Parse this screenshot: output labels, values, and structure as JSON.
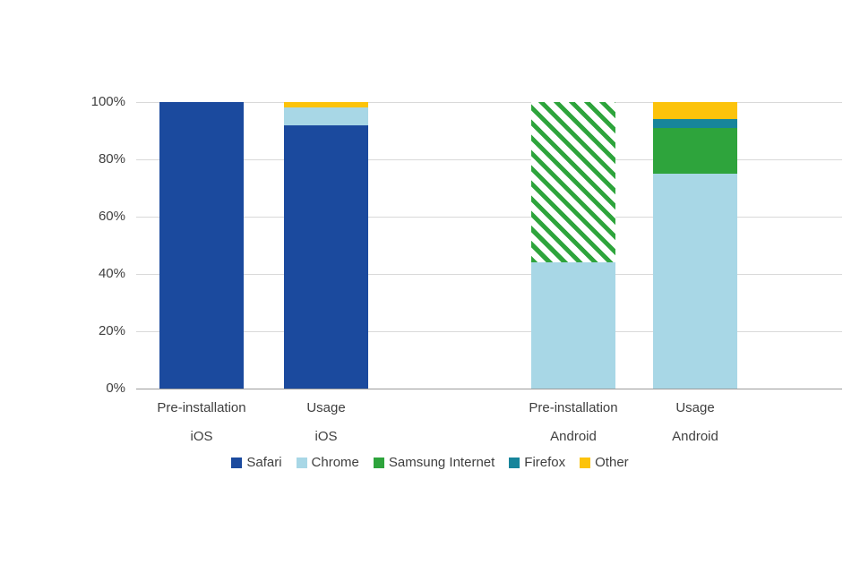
{
  "chart_data": {
    "type": "bar",
    "variant": "stacked-vertical",
    "title": "",
    "xlabel": "",
    "ylabel": "",
    "ylim": [
      0,
      100
    ],
    "grid": true,
    "legend_position": "bottom",
    "categories": [
      {
        "line1": "Pre-installation",
        "line2": "iOS"
      },
      {
        "line1": "Usage",
        "line2": "iOS"
      },
      {
        "line1": "Pre-installation",
        "line2": "Android"
      },
      {
        "line1": "Usage",
        "line2": "Android"
      }
    ],
    "series": [
      {
        "name": "Safari",
        "color": "#1b4a9e",
        "values": [
          100,
          92,
          0,
          0
        ],
        "hatched": [
          false,
          false,
          false,
          false
        ]
      },
      {
        "name": "Chrome",
        "color": "#a8d7e6",
        "values": [
          0,
          6,
          44,
          75
        ],
        "hatched": [
          false,
          false,
          false,
          false
        ]
      },
      {
        "name": "Samsung Internet",
        "color": "#2ea43c",
        "values": [
          0,
          0,
          56,
          16
        ],
        "hatched": [
          false,
          false,
          true,
          false
        ]
      },
      {
        "name": "Firefox",
        "color": "#17859b",
        "values": [
          0,
          0,
          0,
          3
        ],
        "hatched": [
          false,
          false,
          false,
          false
        ]
      },
      {
        "name": "Other",
        "color": "#fcc30b",
        "values": [
          0,
          2,
          0,
          6
        ],
        "hatched": [
          false,
          false,
          false,
          false
        ]
      }
    ],
    "y_ticks": [
      {
        "value": 0,
        "label": "0%"
      },
      {
        "value": 20,
        "label": "20%"
      },
      {
        "value": 40,
        "label": "40%"
      },
      {
        "value": 60,
        "label": "60%"
      },
      {
        "value": 80,
        "label": "80%"
      },
      {
        "value": 100,
        "label": "100%"
      }
    ]
  }
}
